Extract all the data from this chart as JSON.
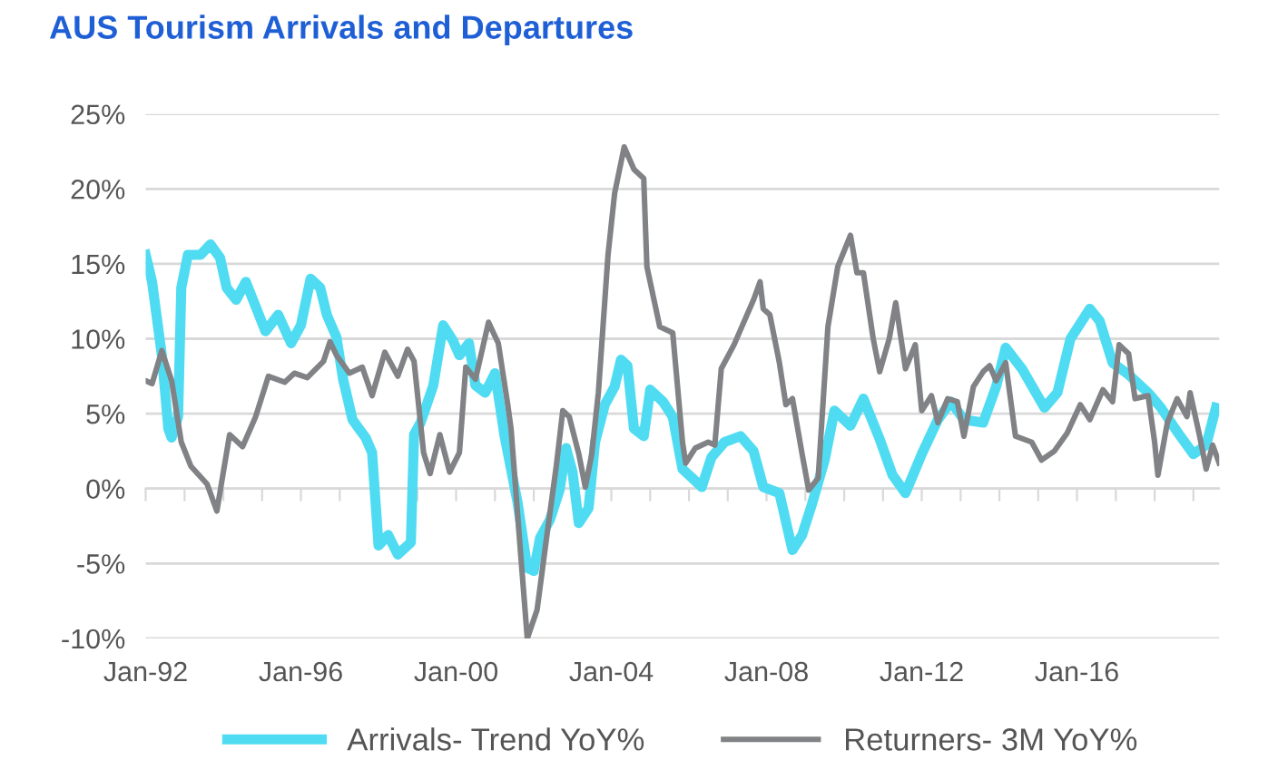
{
  "chart_data": {
    "type": "line",
    "title": "AUS Tourism Arrivals and Departures",
    "xlim": [
      "1992-01",
      "2019-09"
    ],
    "ylim": [
      -10,
      25
    ],
    "xticks": [
      {
        "value": "1992-01",
        "label": "Jan-92"
      },
      {
        "value": "1993-01",
        "label": null
      },
      {
        "value": "1994-01",
        "label": null
      },
      {
        "value": "1995-01",
        "label": null
      },
      {
        "value": "1996-01",
        "label": "Jan-96"
      },
      {
        "value": "1997-01",
        "label": null
      },
      {
        "value": "1998-01",
        "label": null
      },
      {
        "value": "1999-01",
        "label": null
      },
      {
        "value": "2000-01",
        "label": "Jan-00"
      },
      {
        "value": "2001-01",
        "label": null
      },
      {
        "value": "2002-01",
        "label": null
      },
      {
        "value": "2003-01",
        "label": null
      },
      {
        "value": "2004-01",
        "label": "Jan-04"
      },
      {
        "value": "2005-01",
        "label": null
      },
      {
        "value": "2006-01",
        "label": null
      },
      {
        "value": "2007-01",
        "label": null
      },
      {
        "value": "2008-01",
        "label": "Jan-08"
      },
      {
        "value": "2009-01",
        "label": null
      },
      {
        "value": "2010-01",
        "label": null
      },
      {
        "value": "2011-01",
        "label": null
      },
      {
        "value": "2012-01",
        "label": "Jan-12"
      },
      {
        "value": "2013-01",
        "label": null
      },
      {
        "value": "2014-01",
        "label": null
      },
      {
        "value": "2015-01",
        "label": null
      },
      {
        "value": "2016-01",
        "label": "Jan-16"
      },
      {
        "value": "2017-01",
        "label": null
      },
      {
        "value": "2018-01",
        "label": null
      },
      {
        "value": "2019-01",
        "label": null
      }
    ],
    "yticks": [
      {
        "value": -10,
        "label": "-10%"
      },
      {
        "value": -5,
        "label": "-5%"
      },
      {
        "value": 0,
        "label": "0%"
      },
      {
        "value": 5,
        "label": "5%"
      },
      {
        "value": 10,
        "label": "10%"
      },
      {
        "value": 15,
        "label": "15%"
      },
      {
        "value": 20,
        "label": "20%"
      },
      {
        "value": 25,
        "label": "25%"
      }
    ],
    "grid": "y",
    "legend": "bottom",
    "marker": "none",
    "line_style": "solid",
    "series": [
      {
        "name": "Arrivals- Trend YoY%",
        "color": "#4fdcf2",
        "x": [
          "1992-01",
          "1992-03",
          "1992-06",
          "1992-08",
          "1992-09",
          "1992-11",
          "1992-12",
          "1993-02",
          "1993-06",
          "1993-09",
          "1993-12",
          "1994-02",
          "1994-05",
          "1994-08",
          "1995-02",
          "1995-06",
          "1995-10",
          "1996-01",
          "1996-04",
          "1996-07",
          "1996-09",
          "1996-12",
          "1997-02",
          "1997-05",
          "1997-07",
          "1997-09",
          "1997-11",
          "1998-01",
          "1998-04",
          "1998-07",
          "1998-11",
          "1998-12",
          "1999-02",
          "1999-06",
          "1999-09",
          "1999-12",
          "2000-02",
          "2000-05",
          "2000-07",
          "2000-10",
          "2001-01",
          "2001-04",
          "2001-08",
          "2001-11",
          "2002-01",
          "2002-03",
          "2002-06",
          "2002-09",
          "2002-11",
          "2003-01",
          "2003-03",
          "2003-06",
          "2003-08",
          "2003-11",
          "2004-02",
          "2004-04",
          "2004-06",
          "2004-08",
          "2004-11",
          "2005-01",
          "2005-05",
          "2005-08",
          "2005-11",
          "2006-02",
          "2006-05",
          "2006-08",
          "2006-12",
          "2007-05",
          "2007-09",
          "2007-12",
          "2008-05",
          "2008-09",
          "2008-12",
          "2009-03",
          "2009-07",
          "2009-10",
          "2010-03",
          "2010-07",
          "2010-12",
          "2011-04",
          "2011-08",
          "2012-01",
          "2012-06",
          "2012-10",
          "2013-02",
          "2013-08",
          "2013-12",
          "2014-03",
          "2014-08",
          "2015-03",
          "2015-07",
          "2015-11",
          "2016-05",
          "2016-08",
          "2016-12",
          "2017-05",
          "2017-11",
          "2018-03",
          "2018-08",
          "2019-01",
          "2019-05",
          "2019-08"
        ],
        "values": [
          15.6,
          13.8,
          8.9,
          4.0,
          3.4,
          4.8,
          13.4,
          15.6,
          15.6,
          16.3,
          15.4,
          13.4,
          12.6,
          13.8,
          10.5,
          11.6,
          9.7,
          10.9,
          14.0,
          13.4,
          11.6,
          10.1,
          7.3,
          4.6,
          4.0,
          3.4,
          2.4,
          -3.8,
          -3.1,
          -4.4,
          -3.6,
          3.6,
          4.4,
          6.9,
          10.9,
          9.9,
          8.9,
          9.7,
          6.9,
          6.4,
          7.7,
          3.5,
          -0.9,
          -5.3,
          -5.5,
          -3.3,
          -2.1,
          -0.1,
          2.7,
          1.1,
          -2.3,
          -1.3,
          3.1,
          5.6,
          6.8,
          8.6,
          8.2,
          4.0,
          3.5,
          6.6,
          5.8,
          4.8,
          1.3,
          0.7,
          0.1,
          2.1,
          3.1,
          3.5,
          2.5,
          0.1,
          -0.3,
          -4.1,
          -3.1,
          -1.1,
          1.9,
          5.2,
          4.2,
          6.0,
          3.3,
          0.9,
          -0.3,
          2.3,
          4.6,
          5.8,
          4.6,
          4.4,
          6.8,
          9.4,
          8.0,
          5.4,
          6.4,
          10.0,
          12.0,
          11.2,
          8.4,
          7.6,
          6.4,
          5.4,
          3.8,
          2.3,
          2.9,
          5.4
        ]
      },
      {
        "name": "Returners- 3M YoY%",
        "color": "#808285",
        "x": [
          "1992-01",
          "1992-03",
          "1992-06",
          "1992-09",
          "1992-12",
          "1993-03",
          "1993-08",
          "1993-11",
          "1994-01",
          "1994-03",
          "1994-07",
          "1994-11",
          "1995-03",
          "1995-08",
          "1995-11",
          "1996-03",
          "1996-08",
          "1996-10",
          "1996-12",
          "1997-04",
          "1997-08",
          "1997-11",
          "1998-03",
          "1998-07",
          "1998-10",
          "1998-12",
          "1999-03",
          "1999-05",
          "1999-08",
          "1999-11",
          "2000-02",
          "2000-04",
          "2000-07",
          "2000-11",
          "2001-02",
          "2001-05",
          "2001-06",
          "2001-09",
          "2001-11",
          "2002-02",
          "2002-05",
          "2002-08",
          "2002-10",
          "2002-12",
          "2003-03",
          "2003-05",
          "2003-07",
          "2003-09",
          "2003-12",
          "2004-02",
          "2004-05",
          "2004-08",
          "2004-11",
          "2004-12",
          "2005-04",
          "2005-08",
          "2005-11",
          "2005-12",
          "2006-03",
          "2006-07",
          "2006-09",
          "2006-11",
          "2007-03",
          "2007-05",
          "2007-09",
          "2007-11",
          "2007-12",
          "2008-02",
          "2008-05",
          "2008-07",
          "2008-09",
          "2008-12",
          "2009-02",
          "2009-05",
          "2009-08",
          "2009-11",
          "2010-03",
          "2010-05",
          "2010-07",
          "2010-10",
          "2010-12",
          "2011-03",
          "2011-05",
          "2011-08",
          "2011-11",
          "2012-01",
          "2012-04",
          "2012-06",
          "2012-09",
          "2012-12",
          "2013-02",
          "2013-05",
          "2013-08",
          "2013-10",
          "2013-12",
          "2014-03",
          "2014-06",
          "2014-11",
          "2015-02",
          "2015-06",
          "2015-10",
          "2016-02",
          "2016-05",
          "2016-09",
          "2016-12",
          "2017-02",
          "2017-05",
          "2017-07",
          "2017-11",
          "2018-01",
          "2018-02",
          "2018-05",
          "2018-08",
          "2018-11",
          "2018-12",
          "2019-03",
          "2019-05",
          "2019-07",
          "2019-09"
        ],
        "values": [
          7.2,
          7.0,
          9.2,
          7.2,
          3.1,
          1.5,
          0.3,
          -1.5,
          1.1,
          3.6,
          2.8,
          4.8,
          7.5,
          7.1,
          7.7,
          7.4,
          8.5,
          9.8,
          8.9,
          7.7,
          8.1,
          6.2,
          9.1,
          7.5,
          9.3,
          8.5,
          2.4,
          1.0,
          3.6,
          1.1,
          2.4,
          8.1,
          7.3,
          11.1,
          9.7,
          5.6,
          4.0,
          -4.5,
          -10.0,
          -8.1,
          -3.3,
          1.5,
          5.2,
          4.8,
          2.3,
          0.1,
          2.3,
          6.4,
          15.6,
          19.7,
          22.8,
          21.3,
          20.7,
          14.8,
          10.8,
          10.4,
          3.1,
          1.7,
          2.7,
          3.1,
          2.9,
          8.0,
          9.6,
          10.6,
          12.6,
          13.8,
          12.0,
          11.6,
          8.4,
          5.6,
          6.0,
          2.3,
          -0.1,
          0.7,
          10.8,
          14.8,
          16.9,
          14.4,
          14.4,
          10.0,
          7.8,
          10.0,
          12.4,
          8.0,
          9.6,
          5.2,
          6.2,
          4.4,
          6.0,
          5.8,
          3.5,
          6.8,
          7.8,
          8.2,
          7.2,
          8.4,
          3.5,
          3.1,
          1.9,
          2.5,
          3.7,
          5.6,
          4.6,
          6.6,
          5.8,
          9.6,
          9.0,
          6.0,
          6.2,
          3.1,
          0.9,
          4.4,
          6.0,
          4.8,
          6.4,
          3.5,
          1.3,
          2.9,
          1.7
        ]
      }
    ]
  }
}
